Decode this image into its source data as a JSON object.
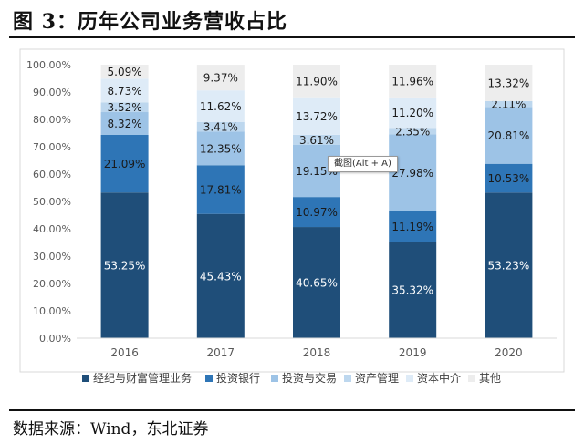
{
  "header": {
    "title": "图 3：历年公司业务营收占比"
  },
  "footer": {
    "source": "数据来源：Wind，东北证券"
  },
  "tooltip": {
    "text": "截图(Alt + A)"
  },
  "chart_data": {
    "type": "bar",
    "stacked": true,
    "categories": [
      "2016",
      "2017",
      "2018",
      "2019",
      "2020"
    ],
    "ylim": [
      0,
      100
    ],
    "yticks": [
      "0.00%",
      "10.00%",
      "20.00%",
      "30.00%",
      "40.00%",
      "50.00%",
      "60.00%",
      "70.00%",
      "80.00%",
      "90.00%",
      "100.00%"
    ],
    "legend_position": "bottom",
    "grid": false,
    "series": [
      {
        "name": "经纪与财富管理业务",
        "color": "#1f4e79",
        "label_color": "#ffffff",
        "values": [
          53.25,
          45.43,
          40.65,
          35.32,
          53.23
        ],
        "labels": [
          "53.25%",
          "45.43%",
          "40.65%",
          "35.32%",
          "53.23%"
        ]
      },
      {
        "name": "投资银行",
        "color": "#2e75b6",
        "label_color": "#1a1a1a",
        "values": [
          21.09,
          17.81,
          10.97,
          11.19,
          10.53
        ],
        "labels": [
          "21.09%",
          "17.81%",
          "10.97%",
          "11.19%",
          "10.53%"
        ]
      },
      {
        "name": "投资与交易",
        "color": "#9dc3e6",
        "label_color": "#1a1a1a",
        "values": [
          8.32,
          12.35,
          19.15,
          27.98,
          20.81
        ],
        "labels": [
          "8.32%",
          "12.35%",
          "19.15%",
          "27.98%",
          "20.81%"
        ]
      },
      {
        "name": "资产管理",
        "color": "#bdd7ee",
        "label_color": "#1a1a1a",
        "values": [
          3.52,
          3.41,
          3.61,
          2.35,
          2.11
        ],
        "labels": [
          "3.52%",
          "3.41%",
          "3.61%",
          "2.35%",
          "2.11%"
        ]
      },
      {
        "name": "资本中介",
        "color": "#deebf7",
        "label_color": "#1a1a1a",
        "values": [
          8.73,
          11.62,
          13.72,
          11.2,
          0
        ],
        "labels": [
          "8.73%",
          "11.62%",
          "13.72%",
          "11.20%",
          ""
        ]
      },
      {
        "name": "其他",
        "color": "#ededed",
        "label_color": "#1a1a1a",
        "values": [
          5.09,
          9.37,
          11.9,
          11.96,
          13.32
        ],
        "labels": [
          "5.09%",
          "9.37%",
          "11.90%",
          "11.96%",
          "13.32%"
        ]
      }
    ]
  }
}
